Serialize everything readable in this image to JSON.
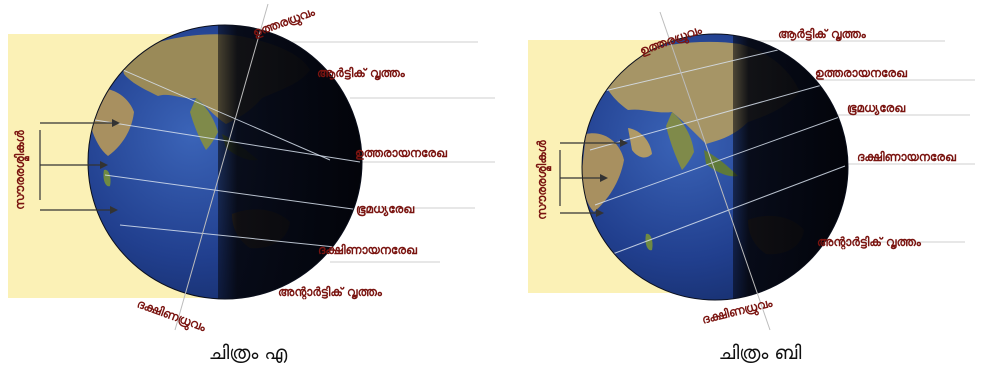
{
  "figure_a": {
    "caption": "ചിത്രം എ",
    "sun_rays_label": "സൗരരശ്മികൾ",
    "labels": {
      "north_pole": "ഉത്തരധ്രുവം",
      "arctic_circle": "ആർട്ടിക് വൃത്തം",
      "tropic_of_cancer": "ഉത്തരായനരേഖ",
      "equator": "ഭൂമധ്യരേഖ",
      "tropic_of_capricorn": "ദക്ഷിണായനരേഖ",
      "antarctic_circle": "അന്റാർട്ടിക് വൃത്തം",
      "south_pole": "ദക്ഷിണധ്രുവം"
    }
  },
  "figure_b": {
    "caption": "ചിത്രം ബി",
    "sun_rays_label": "സൗരരശ്മികൾ",
    "labels": {
      "north_pole": "ഉത്തരധ്രുവം",
      "arctic_circle": "ആർട്ടിക് വൃത്തം",
      "tropic_of_cancer": "ഉത്തരായനരേഖ",
      "equator": "ഭൂമധ്യരേഖ",
      "tropic_of_capricorn": "ദക്ഷിണായനരേഖ",
      "antarctic_circle": "അന്റാർട്ടിക് വൃത്തം",
      "south_pole": "ദക്ഷിണധ്രുവം"
    }
  },
  "colors": {
    "sunlight": "#fbf1b6",
    "label_text": "#7a1410",
    "ocean": "#1f3f8f",
    "night_side": "#05070f"
  }
}
